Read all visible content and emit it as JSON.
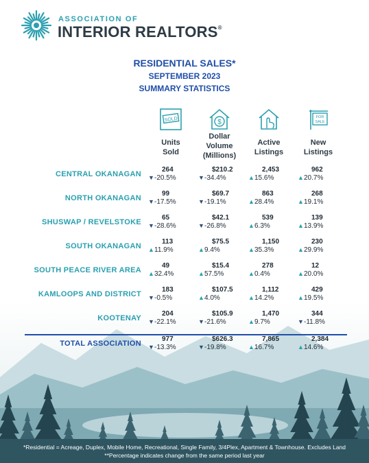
{
  "logo": {
    "top_line": "ASSOCIATION OF",
    "main_line": "INTERIOR REALTORS",
    "reg_mark": "®",
    "icon": "sunburst-logo-icon"
  },
  "titles": {
    "line1": "RESIDENTIAL SALES*",
    "line2": "SEPTEMBER 2023",
    "line3": "SUMMARY STATISTICS"
  },
  "icons": {
    "units": "sold-sign-icon",
    "dollar": "house-dollar-icon",
    "active": "house-hand-icon",
    "new": "for-sale-sign-icon",
    "sold_sign_text": "SOLD",
    "for_sale_text1": "FOR",
    "for_sale_text2": "SALE"
  },
  "columns": [
    {
      "line1": "Units",
      "line2": "Sold",
      "line3": ""
    },
    {
      "line1": "Dollar",
      "line2": "Volume",
      "line3": "(Millions)"
    },
    {
      "line1": "Active",
      "line2": "Listings",
      "line3": ""
    },
    {
      "line1": "New",
      "line2": "Listings",
      "line3": ""
    }
  ],
  "rows": [
    {
      "region": "CENTRAL OKANAGAN",
      "cells": [
        {
          "value": "264",
          "change": "-20.5%",
          "dir": "down"
        },
        {
          "value": "$210.2",
          "change": "-34.4%",
          "dir": "down"
        },
        {
          "value": "2,453",
          "change": "15.6%",
          "dir": "up"
        },
        {
          "value": "962",
          "change": "20.7%",
          "dir": "up"
        }
      ]
    },
    {
      "region": "NORTH OKANAGAN",
      "cells": [
        {
          "value": "99",
          "change": "-17.5%",
          "dir": "down"
        },
        {
          "value": "$69.7",
          "change": "-19.1%",
          "dir": "down"
        },
        {
          "value": "863",
          "change": "28.4%",
          "dir": "up"
        },
        {
          "value": "268",
          "change": "19.1%",
          "dir": "up"
        }
      ]
    },
    {
      "region": "SHUSWAP / REVELSTOKE",
      "cells": [
        {
          "value": "65",
          "change": "-28.6%",
          "dir": "down"
        },
        {
          "value": "$42.1",
          "change": "-26.8%",
          "dir": "down"
        },
        {
          "value": "539",
          "change": "6.3%",
          "dir": "up"
        },
        {
          "value": "139",
          "change": "13.9%",
          "dir": "up"
        }
      ]
    },
    {
      "region": "SOUTH OKANAGAN",
      "cells": [
        {
          "value": "113",
          "change": "11.9%",
          "dir": "up"
        },
        {
          "value": "$75.5",
          "change": "9.4%",
          "dir": "up"
        },
        {
          "value": "1,150",
          "change": "35.3%",
          "dir": "up"
        },
        {
          "value": "230",
          "change": "29.9%",
          "dir": "up"
        }
      ]
    },
    {
      "region": "SOUTH PEACE RIVER AREA",
      "cells": [
        {
          "value": "49",
          "change": "32.4%",
          "dir": "up"
        },
        {
          "value": "$15.4",
          "change": "57.5%",
          "dir": "up"
        },
        {
          "value": "278",
          "change": "0.4%",
          "dir": "up"
        },
        {
          "value": "12",
          "change": "20.0%",
          "dir": "up"
        }
      ]
    },
    {
      "region": "KAMLOOPS AND DISTRICT",
      "cells": [
        {
          "value": "183",
          "change": "-0.5%",
          "dir": "down"
        },
        {
          "value": "$107.5",
          "change": "4.0%",
          "dir": "up"
        },
        {
          "value": "1,112",
          "change": "14.2%",
          "dir": "up"
        },
        {
          "value": "429",
          "change": "19.5%",
          "dir": "up"
        }
      ]
    },
    {
      "region": "KOOTENAY",
      "cells": [
        {
          "value": "204",
          "change": "-22.1%",
          "dir": "down"
        },
        {
          "value": "$105.9",
          "change": "-21.6%",
          "dir": "down"
        },
        {
          "value": "1,470",
          "change": "9.7%",
          "dir": "up"
        },
        {
          "value": "344",
          "change": "-11.8%",
          "dir": "down"
        }
      ]
    },
    {
      "region": "TOTAL ASSOCIATION",
      "total": true,
      "cells": [
        {
          "value": "977",
          "change": "-13.3%",
          "dir": "down"
        },
        {
          "value": "$626.3",
          "change": "-19.8%",
          "dir": "down"
        },
        {
          "value": "7,865",
          "change": "16.7%",
          "dir": "up"
        },
        {
          "value": "2,384",
          "change": "14.6%",
          "dir": "up"
        }
      ]
    }
  ],
  "arrows": {
    "up": "🡅",
    "down": "🡇"
  },
  "colors": {
    "accent_teal": "#2a9fb0",
    "title_blue": "#1f4ea8",
    "down_arrow": "#2e4f74"
  },
  "footnotes": {
    "line1": "*Residential = Acreage, Duplex, Mobile Home, Recreational, Single Family, 3/4Plex, Apartment & Townhouse. Excludes Land",
    "line2": "**Percentage indicates change from the same period last year"
  }
}
